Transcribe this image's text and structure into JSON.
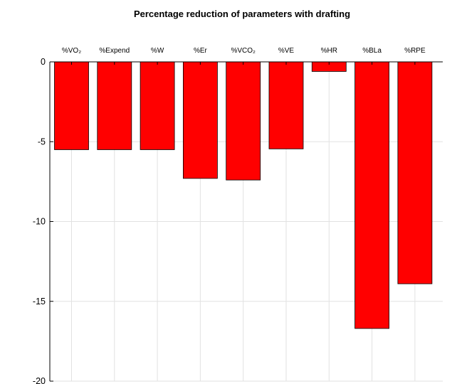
{
  "chart_data": {
    "type": "bar",
    "title": "Percentage reduction of parameters with drafting",
    "xlabel": "",
    "ylabel": "",
    "categories": [
      "%VO₂",
      "%Expend",
      "%W",
      "%Er",
      "%VCO₂",
      "%VE",
      "%HR",
      "%BLa",
      "%RPE"
    ],
    "values": [
      -5.5,
      -5.5,
      -5.5,
      -7.3,
      -7.4,
      -5.45,
      -0.6,
      -16.7,
      -13.9
    ],
    "ylim": [
      -20,
      0
    ],
    "yticks": [
      0,
      -5,
      -10,
      -15,
      -20
    ],
    "grid": true,
    "x_axis_position": "top",
    "bar_color": "#ff0000",
    "bar_edge_color": "#000000"
  }
}
